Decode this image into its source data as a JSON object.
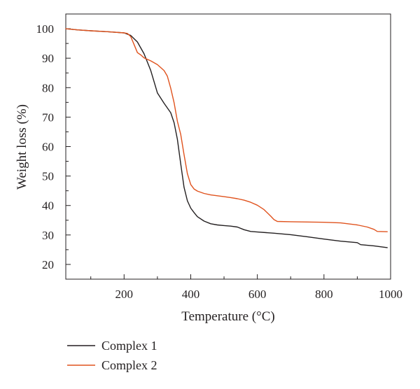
{
  "chart_data": {
    "type": "line",
    "title": "",
    "xlabel": "Temperature (°C)",
    "ylabel": "Weight loss (%)",
    "xlim": [
      25,
      1000
    ],
    "ylim": [
      15,
      105
    ],
    "xticks": [
      200,
      400,
      600,
      800,
      1000
    ],
    "xtick_labels": [
      "200",
      "400",
      "600",
      "800",
      "1000"
    ],
    "yticks": [
      20,
      30,
      40,
      50,
      60,
      70,
      80,
      90,
      100
    ],
    "ytick_labels": [
      "20",
      "30",
      "40",
      "50",
      "60",
      "70",
      "80",
      "90",
      "100"
    ],
    "grid": false,
    "legend_position": "bottom-left",
    "series": [
      {
        "name": "Complex 1",
        "color": "#231f20",
        "x": [
          25,
          60,
          100,
          150,
          200,
          220,
          240,
          260,
          280,
          300,
          320,
          340,
          350,
          360,
          370,
          380,
          390,
          400,
          410,
          420,
          440,
          460,
          480,
          500,
          520,
          540,
          560,
          580,
          600,
          650,
          700,
          750,
          800,
          850,
          900,
          910,
          950,
          990
        ],
        "y": [
          100,
          99.6,
          99.3,
          99,
          98.6,
          97.7,
          95.5,
          91.5,
          85.8,
          78.2,
          74.7,
          71.5,
          68.1,
          62.5,
          54.1,
          46.2,
          41.6,
          39.1,
          37.6,
          36.2,
          34.7,
          33.8,
          33.4,
          33.2,
          33,
          32.7,
          31.8,
          31.2,
          31,
          30.6,
          30.1,
          29.4,
          28.6,
          27.9,
          27.4,
          26.7,
          26.3,
          25.7
        ]
      },
      {
        "name": "Complex 2",
        "color": "#e0531e",
        "x": [
          25,
          60,
          100,
          150,
          200,
          210,
          220,
          230,
          240,
          250,
          260,
          280,
          300,
          320,
          330,
          340,
          350,
          360,
          370,
          380,
          390,
          400,
          410,
          420,
          440,
          460,
          480,
          500,
          520,
          540,
          560,
          580,
          600,
          620,
          640,
          650,
          660,
          700,
          750,
          800,
          850,
          900,
          930,
          950,
          960,
          990
        ],
        "y": [
          100,
          99.6,
          99.3,
          99,
          98.6,
          98.4,
          97.3,
          94.6,
          91.9,
          91.1,
          90.1,
          89.1,
          87.8,
          85.8,
          83.9,
          79.8,
          74.9,
          68.6,
          64.1,
          57.3,
          50.8,
          47.1,
          45.6,
          44.9,
          44.1,
          43.6,
          43.3,
          43,
          42.7,
          42.3,
          41.8,
          41.1,
          40.1,
          38.6,
          36.4,
          35.2,
          34.6,
          34.5,
          34.4,
          34.3,
          34.1,
          33.4,
          32.7,
          31.9,
          31.2,
          31.1
        ]
      }
    ]
  }
}
